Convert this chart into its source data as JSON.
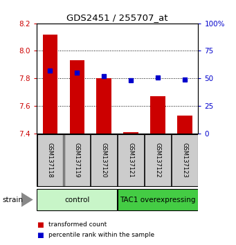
{
  "title": "GDS2451 / 255707_at",
  "samples": [
    "GSM137118",
    "GSM137119",
    "GSM137120",
    "GSM137121",
    "GSM137122",
    "GSM137123"
  ],
  "transformed_counts": [
    8.12,
    7.93,
    7.8,
    7.41,
    7.67,
    7.53
  ],
  "percentile_ranks": [
    57,
    55,
    52,
    48,
    51,
    49
  ],
  "bar_bottom": 7.4,
  "ylim_left": [
    7.4,
    8.2
  ],
  "ylim_right": [
    0,
    100
  ],
  "yticks_left": [
    7.4,
    7.6,
    7.8,
    8.0,
    8.2
  ],
  "yticks_right": [
    0,
    25,
    50,
    75,
    100
  ],
  "ytick_labels_right": [
    "0",
    "25",
    "50",
    "75",
    "100%"
  ],
  "groups": [
    {
      "label": "control",
      "indices": [
        0,
        1,
        2
      ],
      "color": "#c8f5c8"
    },
    {
      "label": "TAC1 overexpressing",
      "indices": [
        3,
        4,
        5
      ],
      "color": "#44cc44"
    }
  ],
  "bar_color": "#cc0000",
  "percentile_color": "#0000cc",
  "tick_color_left": "#cc0000",
  "tick_color_right": "#0000cc",
  "xlabel_area_bg": "#cccccc",
  "legend_items": [
    {
      "label": "transformed count",
      "color": "#cc0000"
    },
    {
      "label": "percentile rank within the sample",
      "color": "#0000cc"
    }
  ]
}
